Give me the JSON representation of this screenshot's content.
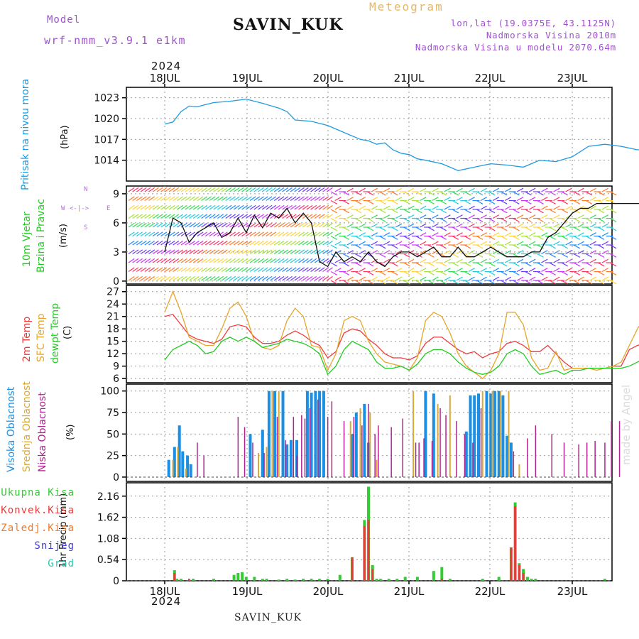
{
  "header": {
    "model_label": "Model",
    "model_name": "wrf-nmm_v3.9.1 e1km",
    "station": "SAVIN_KUK",
    "meteogram_label": "Meteogram",
    "lonlat": "lon,lat (19.0375E, 43.1125N)",
    "altitude": "Nadmorska Visina 2010m",
    "model_altitude": "Nadmorska Visina u modelu 2070.64m",
    "year": "2024",
    "watermark": "made by Angel",
    "footer_station": "SAVIN_KUK",
    "bottom_year": "2024"
  },
  "colors": {
    "pressure": "#1e9be0",
    "temp2m": "#ee3b3b",
    "sfc_temp": "#e6a52a",
    "dewpt": "#22cc22",
    "high_cloud": "#1a8fe3",
    "mid_cloud": "#d9a93a",
    "low_cloud": "#b0238f",
    "total_precip": "#33cc33",
    "conv_precip": "#e83b3b",
    "frozen_precip": "#f07a2a",
    "snow": "#4040d8",
    "hail": "#2bc7b0",
    "wind_title": "#22cc22",
    "model_text": "#a050d0"
  },
  "date_axis": [
    "18JUL",
    "19JUL",
    "20JUL",
    "21JUL",
    "22JUL",
    "23JUL"
  ],
  "chart_data": [
    {
      "type": "line",
      "panel": "pressure",
      "ylabel": "Pritisak na nivou mora",
      "unit": "(hPa)",
      "yticks": [
        "1014",
        "1017",
        "1020",
        "1023"
      ],
      "ylim": [
        1011,
        1024.5
      ],
      "xlim": [
        0,
        6
      ],
      "series": [
        {
          "x": [
            0.0,
            0.1,
            0.2,
            0.3,
            0.4,
            0.5,
            0.6,
            0.8,
            1.0,
            1.2,
            1.4,
            1.5,
            1.6,
            1.8,
            2.0,
            2.2,
            2.4,
            2.5,
            2.6,
            2.7,
            2.8,
            2.9,
            3.0,
            3.1,
            3.2,
            3.4,
            3.6,
            3.8,
            4.0,
            4.2,
            4.4,
            4.6,
            4.8,
            5.0,
            5.2,
            5.4,
            5.6,
            5.8,
            6.0
          ],
          "values": [
            1019.2,
            1019.5,
            1021.0,
            1021.8,
            1021.7,
            1022.0,
            1022.3,
            1022.5,
            1022.8,
            1022.2,
            1021.5,
            1021.0,
            1019.8,
            1019.6,
            1019.0,
            1018.0,
            1017.0,
            1016.8,
            1016.3,
            1016.5,
            1015.5,
            1015.0,
            1014.8,
            1014.2,
            1014.0,
            1013.5,
            1012.5,
            1013.0,
            1013.5,
            1013.3,
            1013.0,
            1014.0,
            1013.8,
            1014.5,
            1016.0,
            1016.3,
            1016.0,
            1015.5,
            1015.5
          ]
        }
      ]
    },
    {
      "type": "line",
      "panel": "wind",
      "title": "10m Vjetar",
      "ylabel": "Brzina i Pravac",
      "unit": "(m/s)",
      "compass": {
        "n": "N",
        "w": "W",
        "e": "E",
        "s": "S"
      },
      "yticks": [
        "0",
        "3",
        "6",
        "9"
      ],
      "ylim": [
        -0.3,
        9.8
      ],
      "xlim": [
        0,
        6
      ],
      "series": [
        {
          "name": "wind speed",
          "x": [
            0.0,
            0.1,
            0.2,
            0.3,
            0.4,
            0.5,
            0.6,
            0.7,
            0.8,
            0.9,
            1.0,
            1.1,
            1.2,
            1.3,
            1.4,
            1.5,
            1.6,
            1.7,
            1.8,
            1.9,
            2.0,
            2.1,
            2.2,
            2.3,
            2.4,
            2.5,
            2.6,
            2.7,
            2.8,
            2.9,
            3.0,
            3.1,
            3.2,
            3.3,
            3.4,
            3.5,
            3.6,
            3.7,
            3.8,
            3.9,
            4.0,
            4.1,
            4.2,
            4.3,
            4.4,
            4.5,
            4.6,
            4.7,
            4.8,
            4.9,
            5.0,
            5.1,
            5.2,
            5.3,
            5.4,
            5.5,
            5.6,
            5.7,
            5.8,
            5.9,
            6.0
          ],
          "values": [
            3.0,
            6.5,
            6.0,
            4.0,
            5.0,
            5.5,
            6.0,
            4.5,
            5.0,
            6.5,
            5.0,
            6.8,
            5.5,
            7.0,
            6.5,
            7.5,
            6.0,
            7.0,
            6.0,
            2.0,
            1.5,
            3.0,
            2.0,
            2.5,
            2.0,
            3.0,
            2.0,
            1.5,
            2.5,
            3.0,
            3.0,
            2.5,
            3.0,
            3.5,
            2.5,
            2.5,
            3.5,
            2.5,
            2.5,
            3.0,
            3.5,
            3.0,
            2.5,
            2.5,
            2.5,
            3.0,
            3.0,
            4.5,
            5.0,
            6.0,
            7.0,
            7.5,
            7.5,
            8.0,
            8.0,
            8.0,
            8.0,
            8.0,
            8.0,
            8.0,
            8.0
          ]
        }
      ]
    },
    {
      "type": "line",
      "panel": "temperature",
      "unit": "(C)",
      "yticks": [
        "6",
        "9",
        "12",
        "15",
        "18",
        "21",
        "24",
        "27"
      ],
      "ylim": [
        5,
        28.5
      ],
      "xlim": [
        0,
        6
      ],
      "series": [
        {
          "name": "2m Temp",
          "x": [
            0.0,
            0.1,
            0.2,
            0.3,
            0.4,
            0.5,
            0.6,
            0.7,
            0.8,
            0.9,
            1.0,
            1.1,
            1.2,
            1.3,
            1.4,
            1.5,
            1.6,
            1.7,
            1.8,
            1.9,
            2.0,
            2.1,
            2.2,
            2.3,
            2.4,
            2.5,
            2.6,
            2.7,
            2.8,
            2.9,
            3.0,
            3.1,
            3.2,
            3.3,
            3.4,
            3.5,
            3.6,
            3.7,
            3.8,
            3.9,
            4.0,
            4.1,
            4.2,
            4.3,
            4.4,
            4.5,
            4.6,
            4.7,
            4.8,
            4.9,
            5.0,
            5.1,
            5.2,
            5.3,
            5.4,
            5.5,
            5.6,
            5.7,
            5.8,
            5.9,
            6.0
          ],
          "values": [
            21,
            21.5,
            19,
            16.5,
            15.5,
            15,
            14.5,
            15.5,
            18.5,
            19,
            18.5,
            16,
            14.5,
            14.5,
            15,
            16.5,
            17.5,
            16.5,
            15,
            14,
            11,
            12.5,
            17,
            18,
            17.5,
            15.5,
            14,
            12,
            11,
            11,
            10.5,
            11.5,
            14.5,
            16,
            16,
            14.5,
            13,
            12,
            12.5,
            11,
            12,
            12.5,
            14.5,
            15,
            14,
            12.5,
            12.5,
            14,
            12,
            10,
            8.5,
            8.5,
            8.5,
            8.5,
            8.5,
            9,
            9,
            13,
            14,
            14.5,
            15
          ]
        },
        {
          "name": "SFC Temp",
          "x": [
            0.0,
            0.1,
            0.2,
            0.3,
            0.4,
            0.5,
            0.6,
            0.7,
            0.8,
            0.9,
            1.0,
            1.1,
            1.2,
            1.3,
            1.4,
            1.5,
            1.6,
            1.7,
            1.8,
            1.9,
            2.0,
            2.1,
            2.2,
            2.3,
            2.4,
            2.5,
            2.6,
            2.7,
            2.8,
            2.9,
            3.0,
            3.1,
            3.2,
            3.3,
            3.4,
            3.5,
            3.6,
            3.7,
            3.8,
            3.9,
            4.0,
            4.1,
            4.2,
            4.3,
            4.4,
            4.5,
            4.6,
            4.7,
            4.8,
            4.9,
            5.0,
            5.1,
            5.2,
            5.3,
            5.4,
            5.5,
            5.6,
            5.7,
            5.8,
            5.9,
            6.0
          ],
          "values": [
            22,
            27,
            22,
            16,
            15,
            14,
            14,
            18,
            23,
            24.5,
            21,
            15,
            13.5,
            13,
            14,
            20,
            23,
            21,
            14,
            13.5,
            8,
            12,
            20,
            21,
            20,
            15,
            12,
            10,
            9.5,
            9,
            8,
            11,
            20,
            22,
            21,
            17,
            12,
            9,
            7.5,
            6,
            8,
            12,
            22,
            22,
            19,
            11,
            8,
            8.5,
            12.5,
            8,
            8.5,
            8.5,
            8.5,
            8,
            8.5,
            9,
            10,
            14,
            18,
            21,
            19
          ]
        },
        {
          "name": "dewpt Temp",
          "x": [
            0.0,
            0.1,
            0.2,
            0.3,
            0.4,
            0.5,
            0.6,
            0.7,
            0.8,
            0.9,
            1.0,
            1.1,
            1.2,
            1.3,
            1.4,
            1.5,
            1.6,
            1.7,
            1.8,
            1.9,
            2.0,
            2.1,
            2.2,
            2.3,
            2.4,
            2.5,
            2.6,
            2.7,
            2.8,
            2.9,
            3.0,
            3.1,
            3.2,
            3.3,
            3.4,
            3.5,
            3.6,
            3.7,
            3.8,
            3.9,
            4.0,
            4.1,
            4.2,
            4.3,
            4.4,
            4.5,
            4.6,
            4.7,
            4.8,
            4.9,
            5.0,
            5.1,
            5.2,
            5.3,
            5.4,
            5.5,
            5.6,
            5.7,
            5.8,
            5.9,
            6.0
          ],
          "values": [
            10.5,
            13,
            14,
            15,
            14,
            12,
            12.5,
            15,
            16,
            15,
            16,
            15,
            13.5,
            14,
            14.5,
            15.5,
            15,
            14.5,
            13.5,
            12,
            7,
            9,
            13,
            15,
            14,
            13,
            10,
            8.5,
            8.5,
            9,
            8,
            9.5,
            12,
            13,
            13,
            12,
            10,
            8.5,
            7.5,
            7,
            7.5,
            9,
            12,
            13,
            12,
            9,
            7,
            7.5,
            8,
            7,
            8,
            8,
            8.5,
            8.5,
            8.5,
            8.5,
            8.5,
            9,
            10,
            11,
            10.5
          ]
        }
      ]
    },
    {
      "type": "bar",
      "panel": "cloud",
      "unit": "(%)",
      "yticks": [
        "0",
        "25",
        "50",
        "75",
        "100"
      ],
      "ylim": [
        -5,
        108
      ],
      "xlim": [
        0,
        6
      ],
      "series": [
        {
          "name": "Visoka Oblacnost",
          "x": [
            0.05,
            0.12,
            0.18,
            0.22,
            0.28,
            0.32,
            1.05,
            1.2,
            1.28,
            1.35,
            1.45,
            1.5,
            1.55,
            1.62,
            1.75,
            1.8,
            1.85,
            1.9,
            1.95,
            2.3,
            2.35,
            2.45,
            2.5,
            3.2,
            3.3,
            3.7,
            3.75,
            3.8,
            3.85,
            3.95,
            4.0,
            4.05,
            4.1,
            4.15,
            4.2,
            4.25
          ],
          "values": [
            20,
            35,
            60,
            30,
            25,
            15,
            50,
            55,
            100,
            100,
            100,
            38,
            43,
            43,
            100,
            98,
            100,
            100,
            100,
            50,
            75,
            85,
            40,
            100,
            97,
            53,
            95,
            95,
            97,
            100,
            97,
            100,
            100,
            95,
            48,
            40
          ]
        },
        {
          "name": "Srednja Oblacnost",
          "x": [
            0.1,
            0.16,
            0.26,
            1.15,
            1.25,
            1.32,
            1.4,
            2.28,
            2.4,
            2.52,
            2.6,
            3.05,
            3.35,
            3.5,
            3.9,
            4.02,
            4.12,
            4.22,
            4.35
          ],
          "values": [
            20,
            35,
            10,
            28,
            35,
            100,
            100,
            65,
            80,
            75,
            20,
            100,
            85,
            95,
            100,
            100,
            100,
            100,
            15
          ]
        },
        {
          "name": "Niska Oblacnost",
          "x": [
            0.4,
            0.48,
            0.9,
            0.98,
            1.08,
            1.22,
            1.38,
            1.48,
            1.58,
            1.62,
            1.68,
            1.72,
            1.78,
            1.88,
            2.0,
            2.05,
            2.2,
            2.32,
            2.42,
            2.5,
            2.58,
            2.62,
            2.78,
            2.92,
            3.08,
            3.12,
            3.18,
            3.28,
            3.38,
            3.45,
            3.58,
            3.68,
            3.78,
            3.88,
            4.28,
            4.45,
            4.55,
            4.75,
            4.9,
            5.08,
            5.18,
            5.28,
            5.4,
            5.48,
            5.58
          ],
          "values": [
            40,
            25,
            70,
            58,
            40,
            28,
            70,
            43,
            70,
            25,
            72,
            68,
            80,
            90,
            70,
            88,
            65,
            70,
            60,
            85,
            50,
            60,
            58,
            68,
            40,
            40,
            45,
            42,
            80,
            72,
            65,
            50,
            40,
            80,
            30,
            45,
            60,
            50,
            40,
            38,
            40,
            42,
            40,
            65,
            65
          ]
        }
      ]
    },
    {
      "type": "bar",
      "panel": "precip",
      "ylabel": "1hr Precip (mm)",
      "yticks": [
        "0",
        "0.54",
        "1.08",
        "1.62",
        "2.16"
      ],
      "ylim": [
        0,
        2.5
      ],
      "xlim": [
        0,
        6
      ],
      "legend": [
        "Ukupna Kisa",
        "Konvek.Kisa",
        "Zaledj.Kisa",
        "Snijeg",
        "Grad"
      ],
      "series": [
        {
          "name": "Ukupna Kisa",
          "x": [
            0.12,
            0.15,
            0.2,
            0.35,
            0.6,
            0.85,
            0.9,
            0.95,
            1.0,
            1.1,
            1.2,
            1.25,
            1.4,
            1.5,
            1.6,
            1.7,
            1.8,
            1.9,
            2.0,
            2.15,
            2.3,
            2.45,
            2.5,
            2.55,
            2.6,
            2.65,
            2.75,
            2.85,
            2.95,
            3.1,
            3.3,
            3.4,
            3.5,
            3.9,
            4.1,
            4.1,
            4.25,
            4.3,
            4.35,
            4.4,
            4.45,
            4.5,
            4.55,
            5.4,
            5.9,
            6.0
          ],
          "values": [
            0.27,
            0.05,
            0.05,
            0.05,
            0.05,
            0.15,
            0.2,
            0.22,
            0.1,
            0.1,
            0.05,
            0.05,
            0.03,
            0.05,
            0.03,
            0.05,
            0.05,
            0.05,
            0.05,
            0.15,
            0.6,
            1.55,
            2.4,
            0.4,
            0.05,
            0.05,
            0.05,
            0.05,
            0.1,
            0.1,
            0.25,
            0.35,
            0.05,
            0.05,
            0.05,
            0.1,
            0.85,
            2.0,
            0.45,
            0.3,
            0.1,
            0.05,
            0.05,
            0.05,
            0.05,
            0.05
          ]
        },
        {
          "name": "Konvek.Kisa",
          "x": [
            0.12,
            0.3,
            2.3,
            2.45,
            2.5,
            2.55,
            3.4,
            4.25,
            4.3,
            4.35,
            4.4
          ],
          "values": [
            0.2,
            0.05,
            0.6,
            1.4,
            1.55,
            0.3,
            0.05,
            0.85,
            1.9,
            0.4,
            0.2
          ]
        }
      ]
    }
  ]
}
